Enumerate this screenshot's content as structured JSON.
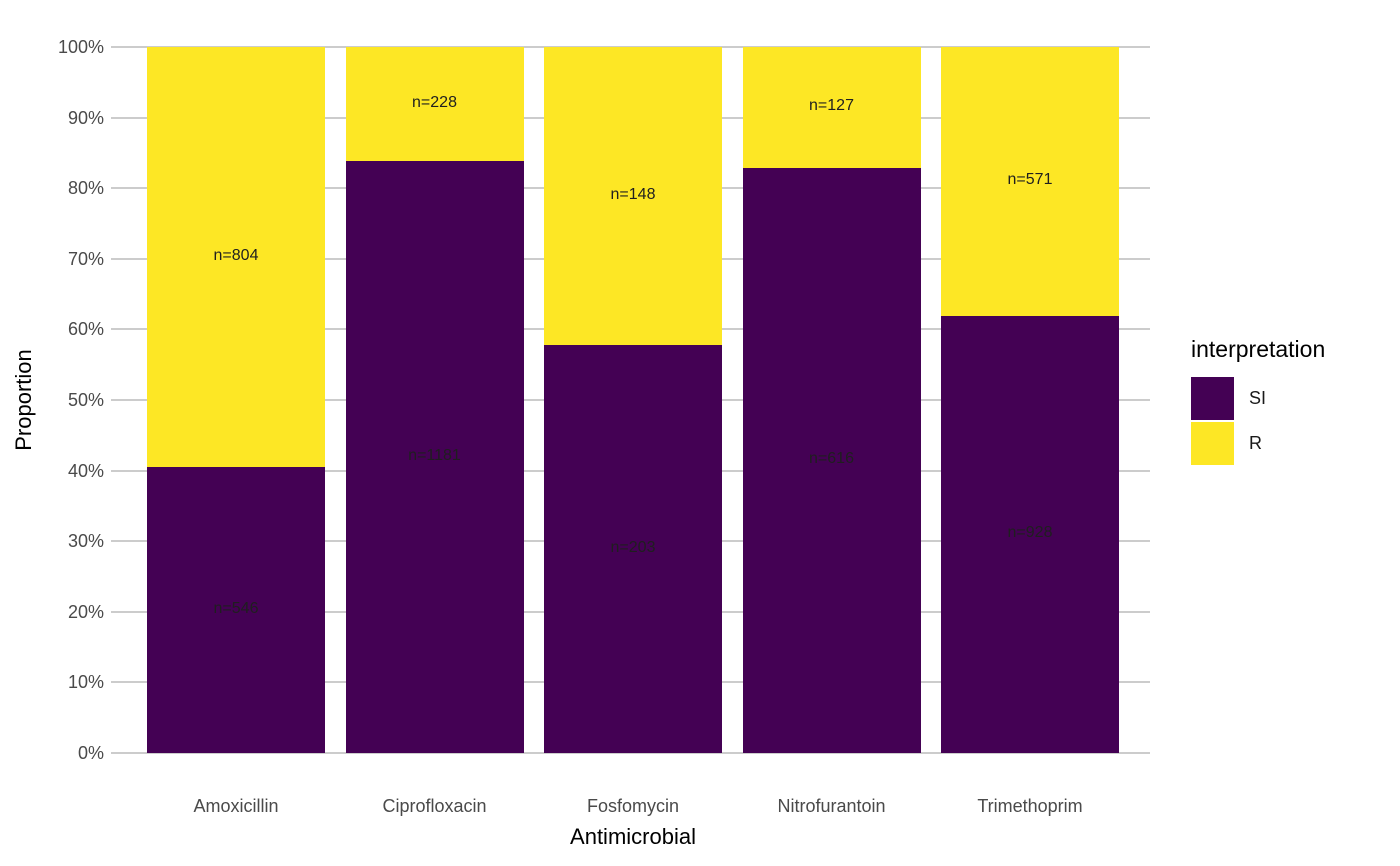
{
  "chart_data": {
    "type": "bar",
    "subtype": "stacked-proportion",
    "orientation": "vertical",
    "title": "",
    "xlabel": "Antimicrobial",
    "ylabel": "Proportion",
    "categories": [
      "Amoxicillin",
      "Ciprofloxacin",
      "Fosfomycin",
      "Nitrofurantoin",
      "Trimethoprim"
    ],
    "series": [
      {
        "name": "SI",
        "color": "#440154",
        "counts": [
          546,
          1181,
          203,
          616,
          928
        ],
        "labels": [
          "n=546",
          "n=1181",
          "n=203",
          "n=616",
          "n=928"
        ]
      },
      {
        "name": "R",
        "color": "#FDE725",
        "counts": [
          804,
          228,
          148,
          127,
          571
        ],
        "labels": [
          "n=804",
          "n=228",
          "n=148",
          "n=127",
          "n=571"
        ]
      }
    ],
    "si_percent_of_total": [
      40.4,
      83.8,
      57.8,
      82.9,
      61.9
    ],
    "ylim": [
      0,
      100
    ],
    "y_ticks": [
      "0%",
      "10%",
      "20%",
      "30%",
      "40%",
      "50%",
      "60%",
      "70%",
      "80%",
      "90%",
      "100%"
    ],
    "grid": "horizontal-only",
    "legend": {
      "title": "interpretation",
      "position": "right",
      "entries": [
        {
          "label": "SI",
          "color": "#440154"
        },
        {
          "label": "R",
          "color": "#FDE725"
        }
      ]
    }
  },
  "style": {
    "background": "#ffffff",
    "grid_color": "#cccccc",
    "tick_label_color": "#4a4a4a",
    "axis_title_color": "#000000",
    "bar_label_color": "#1f1f1f"
  }
}
